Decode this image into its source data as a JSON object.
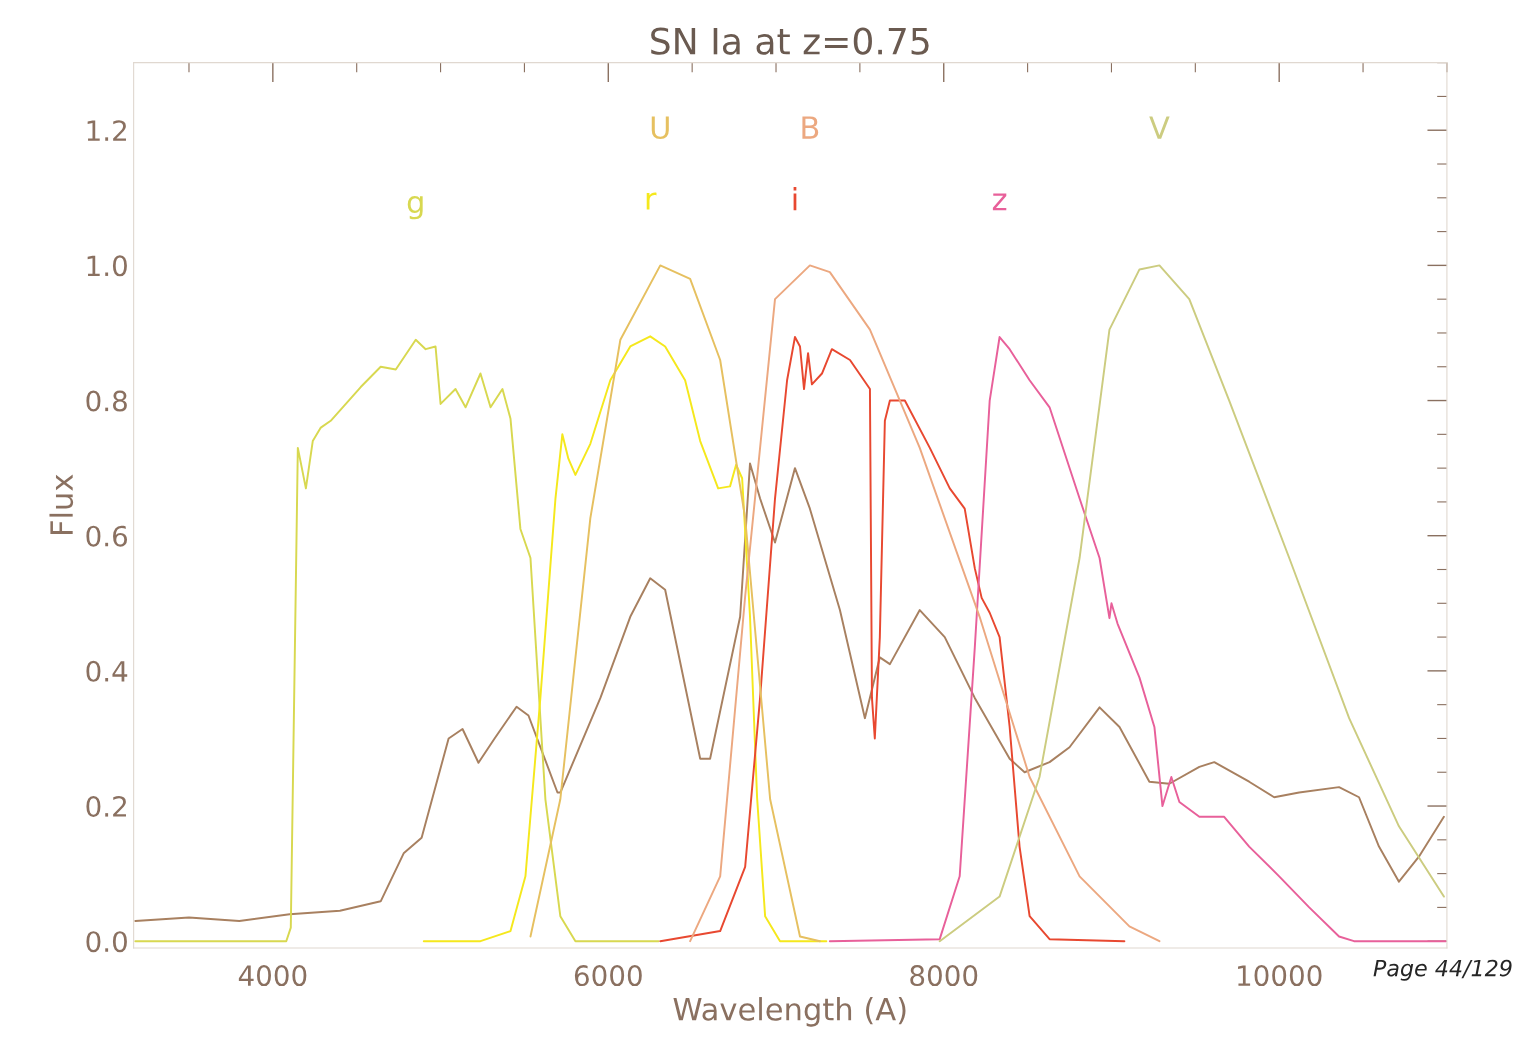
{
  "chart_data": {
    "type": "line",
    "title": "SN Ia at z=0.75",
    "xlabel": "Wavelength (A)",
    "ylabel": "Flux",
    "xlim": [
      3170,
      11000
    ],
    "xticks": [
      4000,
      6000,
      8000,
      10000
    ],
    "ylim": [
      -0.01,
      1.3
    ],
    "yticks": [
      {
        "value": 0,
        "label": "0.0"
      },
      0.2,
      0.4,
      0.6,
      0.8,
      {
        "value": 1,
        "label": "1.0"
      },
      1.2
    ],
    "tick_labels": true,
    "grid": false,
    "legend": false,
    "marker": "none",
    "line_style": "solid",
    "annotations": [
      "Page 44/129"
    ],
    "series": [
      {
        "color": "#a88060",
        "x": [
          3180,
          3500,
          3800,
          4100,
          4400,
          4643,
          4780,
          4887,
          5048,
          5131,
          5226,
          5322,
          5453,
          5524,
          5697,
          5714,
          5953,
          6131,
          6250,
          6339,
          6548,
          6607,
          6786,
          6845,
          6905,
          6994,
          7113,
          7202,
          7381,
          7530,
          7619,
          7679,
          7857,
          8006,
          8185,
          8393,
          8482,
          8631,
          8750,
          8929,
          9048,
          9226,
          9345,
          9524,
          9613,
          9821,
          9970,
          10119,
          10357,
          10476,
          10595,
          10714,
          10833,
          10982
        ],
        "values": [
          0.03,
          0.035,
          0.03,
          0.04,
          0.045,
          0.059,
          0.13,
          0.153,
          0.3,
          0.314,
          0.264,
          0.3,
          0.347,
          0.334,
          0.22,
          0.22,
          0.36,
          0.48,
          0.537,
          0.52,
          0.27,
          0.27,
          0.48,
          0.707,
          0.655,
          0.59,
          0.7,
          0.64,
          0.49,
          0.33,
          0.42,
          0.41,
          0.49,
          0.45,
          0.36,
          0.27,
          0.25,
          0.265,
          0.287,
          0.346,
          0.317,
          0.236,
          0.233,
          0.258,
          0.265,
          0.236,
          0.213,
          0.22,
          0.228,
          0.213,
          0.14,
          0.088,
          0.125,
          0.184
        ]
      },
      {
        "name": "g",
        "color": "#d8d850",
        "x": [
          3180,
          4080,
          4107,
          4149,
          4197,
          4238,
          4286,
          4345,
          4524,
          4643,
          4733,
          4852,
          4911,
          4970,
          5000,
          5089,
          5149,
          5238,
          5298,
          5369,
          5417,
          5476,
          5536,
          5625,
          5714,
          5804,
          6300
        ],
        "values": [
          0,
          0,
          0.02,
          0.73,
          0.67,
          0.74,
          0.76,
          0.77,
          0.82,
          0.85,
          0.846,
          0.89,
          0.876,
          0.88,
          0.795,
          0.817,
          0.79,
          0.84,
          0.79,
          0.817,
          0.773,
          0.61,
          0.567,
          0.21,
          0.037,
          0,
          0
        ]
      },
      {
        "name": "r",
        "color": "#f5e81c",
        "x": [
          4900,
          5238,
          5417,
          5506,
          5595,
          5685,
          5726,
          5762,
          5804,
          5893,
          6012,
          6131,
          6250,
          6339,
          6458,
          6548,
          6655,
          6726,
          6762,
          6798,
          6845,
          6887,
          6935,
          7024,
          7300
        ],
        "values": [
          0,
          0,
          0.015,
          0.096,
          0.36,
          0.655,
          0.75,
          0.714,
          0.69,
          0.736,
          0.83,
          0.88,
          0.895,
          0.88,
          0.83,
          0.74,
          0.67,
          0.673,
          0.705,
          0.685,
          0.48,
          0.213,
          0.037,
          0,
          0
        ]
      },
      {
        "name": "i",
        "color": "#e84830",
        "x": [
          6310,
          6667,
          6816,
          6905,
          6994,
          7066,
          7113,
          7143,
          7167,
          7191,
          7214,
          7274,
          7333,
          7441,
          7560,
          7572,
          7589,
          7619,
          7649,
          7679,
          7768,
          7917,
          8036,
          8125,
          8185,
          8226,
          8274,
          8333,
          8393,
          8452,
          8512,
          8631,
          9077
        ],
        "values": [
          0,
          0.015,
          0.11,
          0.36,
          0.655,
          0.83,
          0.894,
          0.88,
          0.817,
          0.87,
          0.824,
          0.84,
          0.876,
          0.86,
          0.817,
          0.36,
          0.3,
          0.45,
          0.77,
          0.8,
          0.8,
          0.73,
          0.67,
          0.64,
          0.552,
          0.508,
          0.486,
          0.45,
          0.317,
          0.14,
          0.037,
          0.003,
          0
        ]
      },
      {
        "name": "z",
        "color": "#e8609a",
        "x": [
          7321,
          7976,
          8095,
          8185,
          8274,
          8333,
          8393,
          8512,
          8631,
          8810,
          8929,
          8988,
          9000,
          9036,
          9167,
          9256,
          9304,
          9357,
          9405,
          9524,
          9672,
          9821,
          10000,
          10179,
          10357,
          10446,
          10994
        ],
        "values": [
          0,
          0.003,
          0.096,
          0.434,
          0.8,
          0.894,
          0.876,
          0.83,
          0.79,
          0.655,
          0.567,
          0.478,
          0.5,
          0.47,
          0.39,
          0.317,
          0.2,
          0.243,
          0.206,
          0.184,
          0.184,
          0.14,
          0.096,
          0.05,
          0.007,
          0,
          0
        ]
      },
      {
        "name": "U",
        "color": "#e6c060",
        "x": [
          5536,
          5714,
          5893,
          6072,
          6310,
          6488,
          6667,
          6816,
          6965,
          7143,
          7262
        ],
        "values": [
          0.007,
          0.21,
          0.626,
          0.89,
          1.0,
          0.98,
          0.86,
          0.626,
          0.21,
          0.007,
          0
        ]
      },
      {
        "name": "B",
        "color": "#eca880",
        "x": [
          6488,
          6667,
          6816,
          6994,
          7202,
          7321,
          7560,
          7857,
          8214,
          8512,
          8810,
          9107,
          9286
        ],
        "values": [
          0,
          0.096,
          0.51,
          0.95,
          1.0,
          0.99,
          0.905,
          0.73,
          0.48,
          0.243,
          0.096,
          0.022,
          0
        ]
      },
      {
        "name": "V",
        "color": "#cccc80",
        "x": [
          7976,
          8333,
          8571,
          8810,
          8988,
          9167,
          9286,
          9464,
          9702,
          10060,
          10417,
          10714,
          10982
        ],
        "values": [
          0,
          0.066,
          0.243,
          0.567,
          0.905,
          0.994,
          1.0,
          0.95,
          0.8,
          0.567,
          0.33,
          0.17,
          0.066
        ]
      }
    ]
  }
}
